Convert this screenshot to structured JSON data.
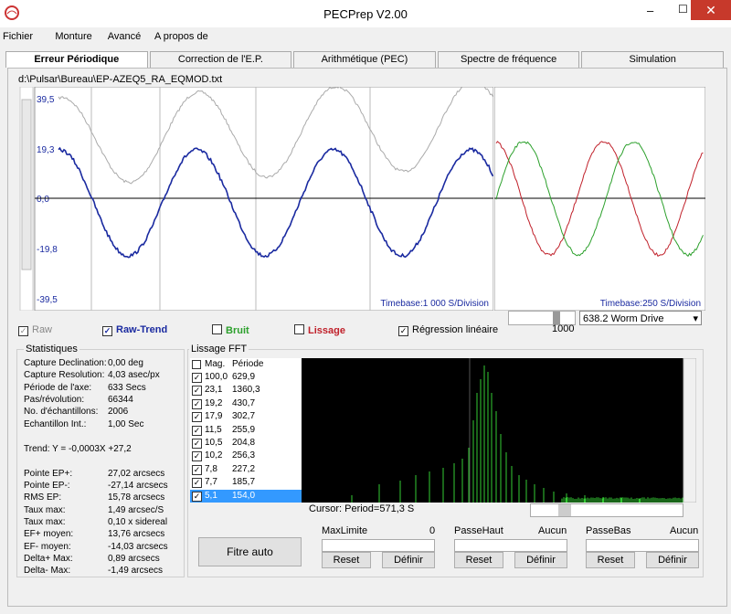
{
  "window": {
    "title": "PECPrep V2.00"
  },
  "menu": [
    "Fichier",
    "Monture",
    "Avancé",
    "A propos de"
  ],
  "tabs": [
    "Erreur Périodique",
    "Correction de l'E.P.",
    "Arithmétique (PEC)",
    "Spectre de fréquence",
    "Simulation"
  ],
  "file_path": "d:\\Pulsar\\Bureau\\EP-AZEQ5_RA_EQMOD.txt",
  "main_plot": {
    "yticks": [
      "39,5",
      "19,3",
      "0,0",
      "-19,8",
      "-39,5"
    ],
    "timebase": "Timebase:1 000 S/Division"
  },
  "side_plot": {
    "timebase": "Timebase:250 S/Division",
    "slider_value": "1000",
    "drive": "638.2 Worm Drive"
  },
  "options": [
    {
      "label": "Raw",
      "checked": true,
      "color": "#888888"
    },
    {
      "label": "Raw-Trend",
      "checked": true,
      "color": "#1a2aa0"
    },
    {
      "label": "Bruit",
      "checked": false,
      "color": "#2ca02c"
    },
    {
      "label": "Lissage",
      "checked": false,
      "color": "#c0202a"
    },
    {
      "label": "Régression linéaire",
      "checked": true,
      "color": "#000000"
    }
  ],
  "stats": {
    "title": "Statistiques",
    "rows": [
      [
        "Capture Declination:",
        "0,00 deg"
      ],
      [
        "Capture Resolution:",
        "4,03 asec/px"
      ],
      [
        "Période de l'axe:",
        "633 Secs"
      ],
      [
        "Pas/révolution:",
        "66344"
      ],
      [
        "No. d'échantillons:",
        "2006"
      ],
      [
        "Echantillon Int.:",
        "1,00 Sec"
      ]
    ],
    "trend": "Trend: Y = -0,0003X +27,2",
    "rows2": [
      [
        "Pointe EP+:",
        "27,02 arcsecs"
      ],
      [
        "Pointe EP-:",
        "-27,14 arcsecs"
      ],
      [
        "RMS EP:",
        "15,78 arcsecs"
      ],
      [
        "Taux max:",
        "1,49 arcsec/S"
      ],
      [
        "Taux max:",
        "0,10 x sidereal"
      ],
      [
        "EF+ moyen:",
        "13,76 arcsecs"
      ],
      [
        "EF- moyen:",
        "-14,03 arcsecs"
      ],
      [
        "Delta+ Max:",
        "0,89 arcsecs"
      ],
      [
        "Delta- Max:",
        "-1,49 arcsecs"
      ]
    ]
  },
  "fft": {
    "title": "Lissage FFT",
    "headers": [
      "Mag.",
      "Période"
    ],
    "rows": [
      [
        "100,0",
        "629,9"
      ],
      [
        "23,1",
        "1360,3"
      ],
      [
        "19,2",
        "430,7"
      ],
      [
        "17,9",
        "302,7"
      ],
      [
        "11,5",
        "255,9"
      ],
      [
        "10,5",
        "204,8"
      ],
      [
        "10,2",
        "256,3"
      ],
      [
        "7,8",
        "227,2"
      ],
      [
        "7,7",
        "185,7"
      ],
      [
        "5,1",
        "154,0"
      ]
    ],
    "cursor": "Cursor: Period=571,3 S"
  },
  "controls": {
    "auto": "Fitre auto",
    "filters": [
      {
        "label": "MaxLimite",
        "value": "0",
        "reset": "Reset",
        "define": "Définir"
      },
      {
        "label": "PasseHaut",
        "value": "Aucun",
        "reset": "Reset",
        "define": "Définir"
      },
      {
        "label": "PasseBas",
        "value": "Aucun",
        "reset": "Reset",
        "define": "Définir"
      }
    ]
  }
}
